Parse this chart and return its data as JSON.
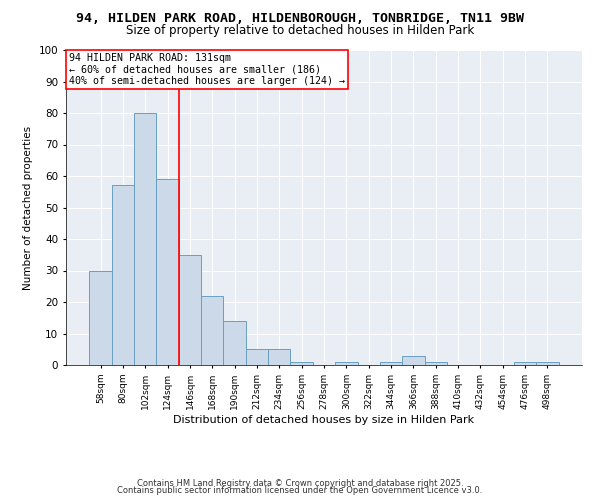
{
  "title": "94, HILDEN PARK ROAD, HILDENBOROUGH, TONBRIDGE, TN11 9BW",
  "subtitle": "Size of property relative to detached houses in Hilden Park",
  "xlabel": "Distribution of detached houses by size in Hilden Park",
  "ylabel": "Number of detached properties",
  "categories": [
    "58sqm",
    "80sqm",
    "102sqm",
    "124sqm",
    "146sqm",
    "168sqm",
    "190sqm",
    "212sqm",
    "234sqm",
    "256sqm",
    "278sqm",
    "300sqm",
    "322sqm",
    "344sqm",
    "366sqm",
    "388sqm",
    "410sqm",
    "432sqm",
    "454sqm",
    "476sqm",
    "498sqm"
  ],
  "values": [
    30,
    57,
    80,
    59,
    35,
    22,
    14,
    5,
    5,
    1,
    0,
    1,
    0,
    1,
    3,
    1,
    0,
    0,
    0,
    1,
    1
  ],
  "bar_color": "#ccd9e8",
  "bar_edge_color": "#6a9fc0",
  "redline_index": 3,
  "annotation_line1": "94 HILDEN PARK ROAD: 131sqm",
  "annotation_line2": "← 60% of detached houses are smaller (186)",
  "annotation_line3": "40% of semi-detached houses are larger (124) →",
  "ylim": [
    0,
    100
  ],
  "yticks": [
    0,
    10,
    20,
    30,
    40,
    50,
    60,
    70,
    80,
    90,
    100
  ],
  "footer1": "Contains HM Land Registry data © Crown copyright and database right 2025.",
  "footer2": "Contains public sector information licensed under the Open Government Licence v3.0.",
  "bg_color": "#e8eef4",
  "title_fontsize": 9.5,
  "subtitle_fontsize": 8.5
}
